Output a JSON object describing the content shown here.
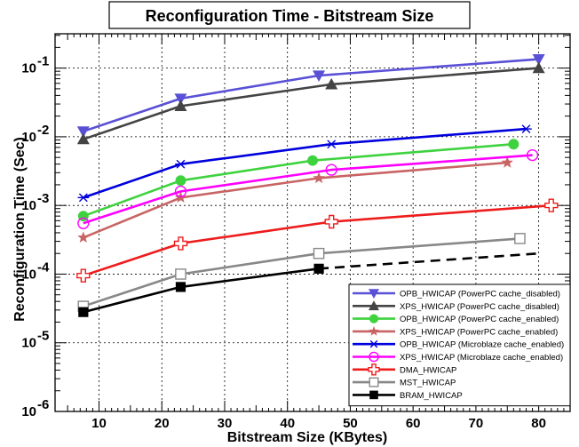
{
  "chart_data": {
    "type": "line",
    "title": "Reconfiguration Time - Bitstream Size",
    "xlabel": "Bitstream Size (KBytes)",
    "ylabel": "Reconfiguration Time (Sec)",
    "xlim": [
      3,
      85
    ],
    "ylim_log10": [
      -6,
      -0.5
    ],
    "yscale": "log",
    "xticks": [
      10,
      20,
      30,
      40,
      50,
      60,
      70,
      80
    ],
    "yticks": [
      {
        "exp": -6,
        "label": "-6"
      },
      {
        "exp": -5,
        "label": "-5"
      },
      {
        "exp": -4,
        "label": "-4"
      },
      {
        "exp": -3,
        "label": "-3"
      },
      {
        "exp": -2,
        "label": "-2"
      },
      {
        "exp": -1,
        "label": "-1"
      }
    ],
    "ytick_base": "10",
    "grid": true,
    "legend_position": "bottom-right",
    "series": [
      {
        "name": "OPB_HWICAP (PowerPC cache_disabled)",
        "color": "#5a50d6",
        "marker": "triangle-down",
        "x": [
          7.5,
          23,
          45,
          80
        ],
        "y": [
          0.012,
          0.036,
          0.078,
          0.135
        ]
      },
      {
        "name": "XPS_HWICAP (PowerPC cache_disabled)",
        "color": "#444444",
        "marker": "triangle-up",
        "x": [
          7.5,
          23,
          47,
          80
        ],
        "y": [
          0.0092,
          0.028,
          0.058,
          0.1
        ]
      },
      {
        "name": "OPB_HWICAP (PowerPC cache_enabled)",
        "color": "#3fd23f",
        "marker": "circle",
        "x": [
          7.5,
          23,
          44,
          76
        ],
        "y": [
          0.0007,
          0.0023,
          0.0045,
          0.0078
        ]
      },
      {
        "name": "XPS_HWICAP (PowerPC cache_enabled)",
        "color": "#c86464",
        "marker": "star",
        "x": [
          7.5,
          23,
          45,
          75
        ],
        "y": [
          0.00034,
          0.0013,
          0.0025,
          0.0042
        ]
      },
      {
        "name": "OPB_HWICAP (Microblaze cache_enabled)",
        "color": "#0000dd",
        "marker": "asterisk",
        "x": [
          7.5,
          23,
          47,
          78
        ],
        "y": [
          0.0013,
          0.004,
          0.0078,
          0.013
        ]
      },
      {
        "name": "XPS_HWICAP (Microblaze cache_enabled)",
        "color": "#ff00ff",
        "marker": "open-circle",
        "x": [
          7.5,
          23,
          47,
          79
        ],
        "y": [
          0.00055,
          0.0016,
          0.0033,
          0.0054
        ]
      },
      {
        "name": "DMA_HWICAP",
        "color": "#ee1c1c",
        "marker": "open-cross",
        "x": [
          7.5,
          23,
          47,
          82
        ],
        "y": [
          9.5e-05,
          0.00028,
          0.00058,
          0.001
        ]
      },
      {
        "name": "MST_HWICAP",
        "color": "#888888",
        "marker": "open-square",
        "x": [
          7.5,
          23,
          45,
          77
        ],
        "y": [
          3.4e-05,
          0.0001,
          0.0002,
          0.00033
        ]
      },
      {
        "name": "BRAM_HWICAP",
        "color": "#000000",
        "marker": "filled-square",
        "x": [
          7.5,
          23,
          45,
          80
        ],
        "y": [
          2.8e-05,
          6.5e-05,
          0.00012,
          0.0002
        ],
        "dashed_last_segment": true
      }
    ]
  }
}
